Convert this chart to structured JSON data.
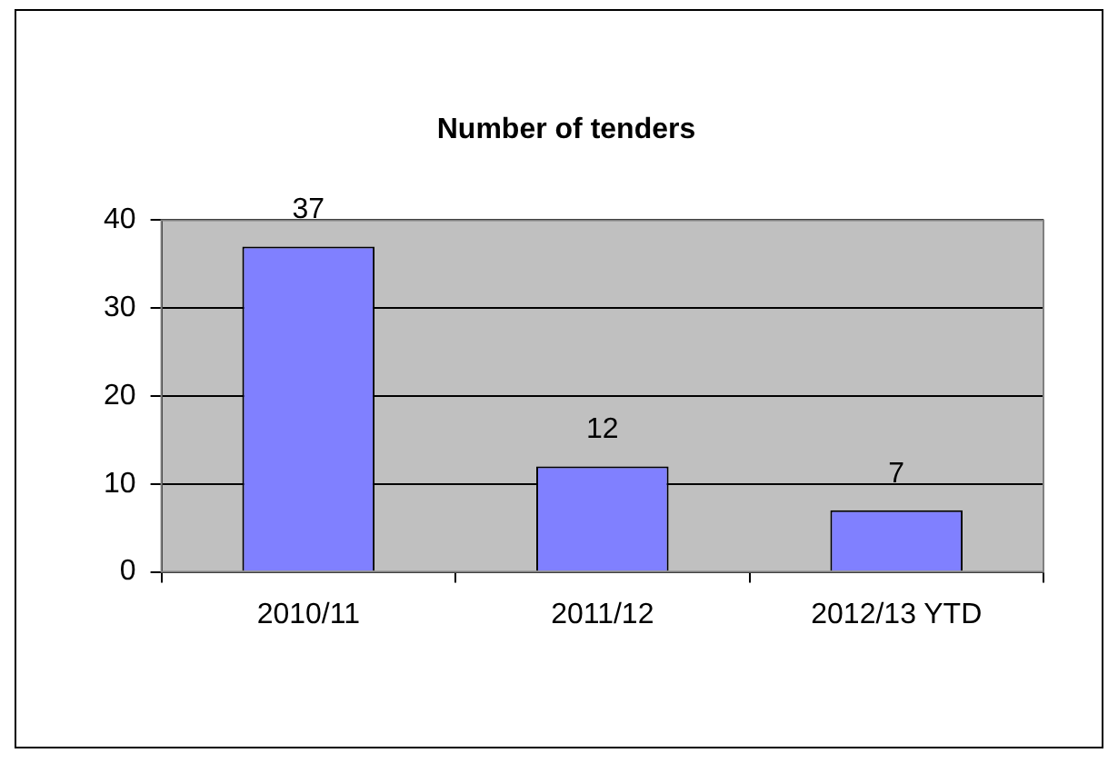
{
  "chart_data": {
    "type": "bar",
    "title": "Number of tenders",
    "categories": [
      "2010/11",
      "2011/12",
      "2012/13 YTD"
    ],
    "values": [
      37,
      12,
      7
    ],
    "color": "#8080ff",
    "ylim": [
      0,
      40
    ],
    "yticks": [
      0,
      10,
      20,
      30,
      40
    ],
    "grid": "y",
    "data_labels": true,
    "legend": false
  }
}
